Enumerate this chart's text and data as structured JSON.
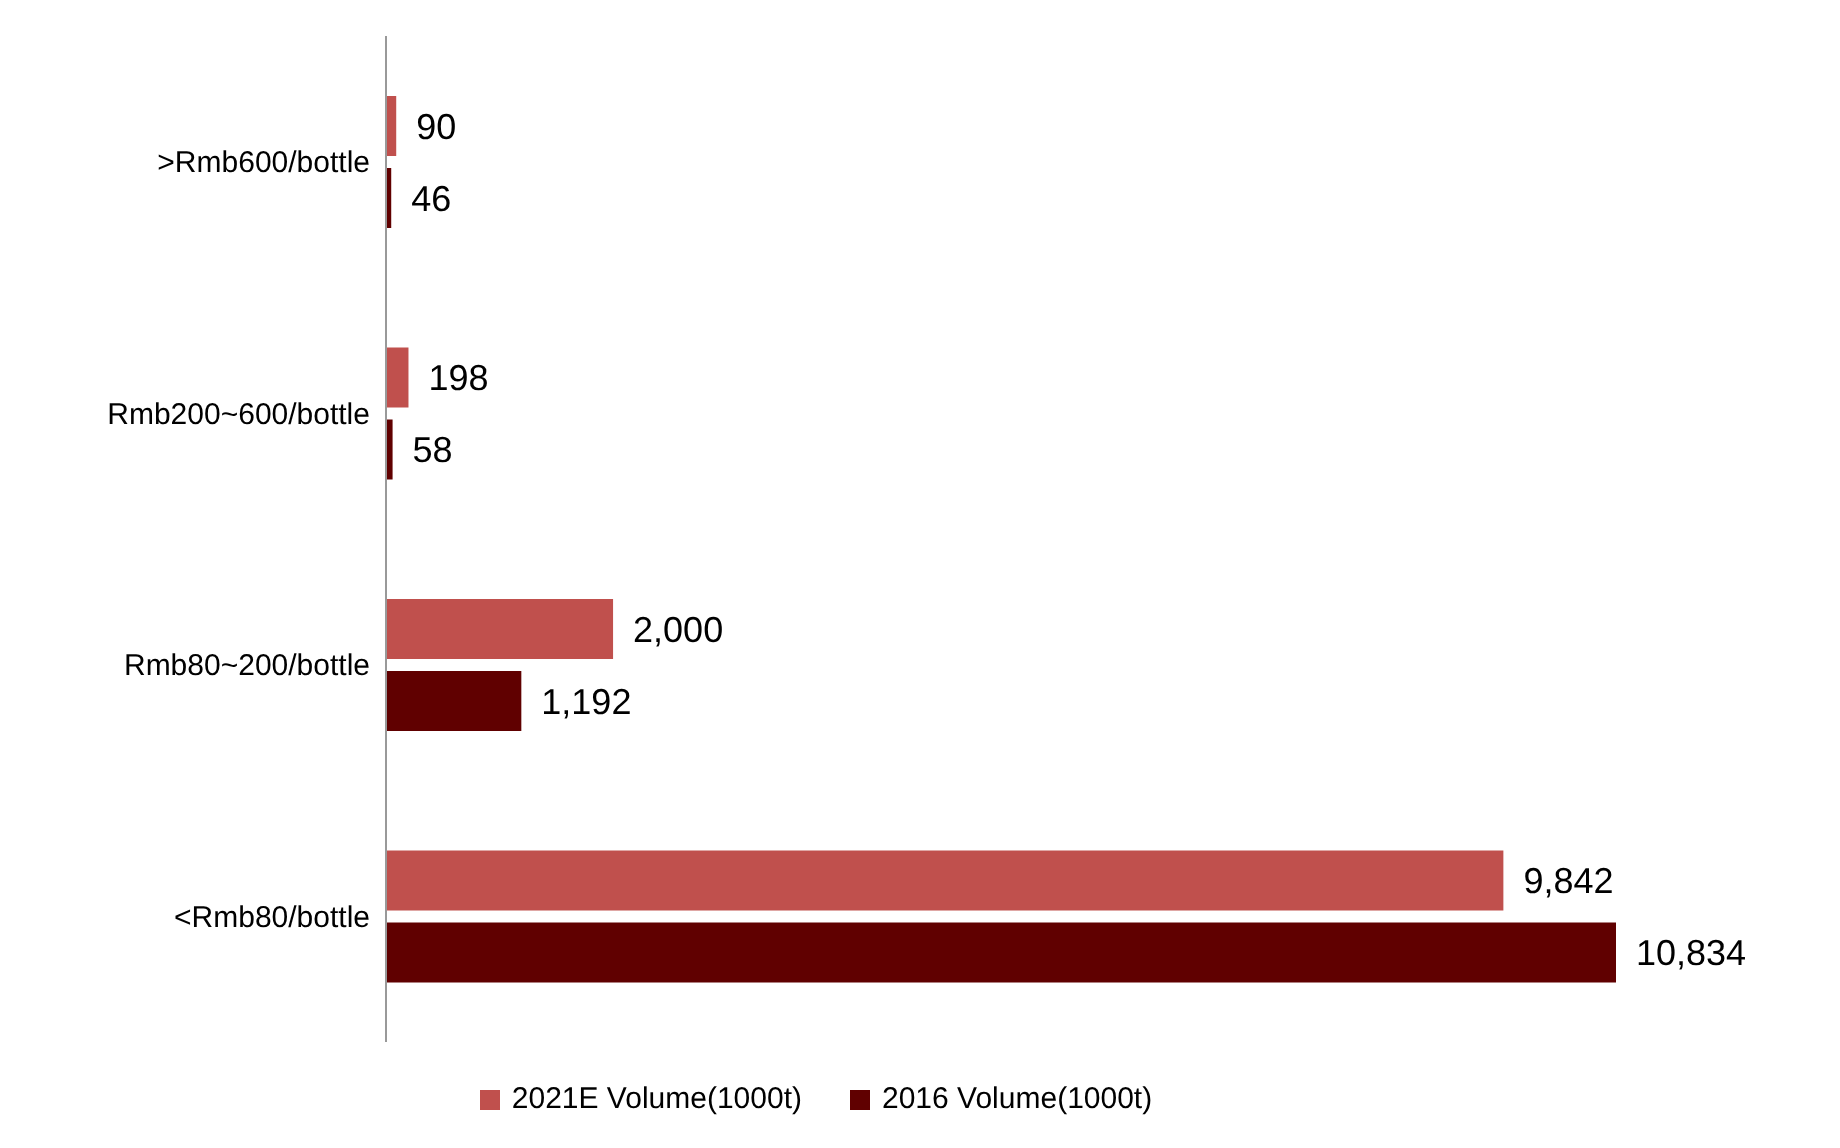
{
  "chart_data": {
    "type": "bar",
    "orientation": "horizontal",
    "categories": [
      ">Rmb600/bottle",
      "Rmb200~600/bottle",
      "Rmb80~200/bottle",
      "<Rmb80/bottle"
    ],
    "series": [
      {
        "name": "2021E Volume(1000t)",
        "color": "#c0504d",
        "values": [
          90,
          198,
          2000,
          9842
        ],
        "value_labels": [
          "90",
          "198",
          "2,000",
          "9,842"
        ]
      },
      {
        "name": "2016 Volume(1000t)",
        "color": "#600000",
        "values": [
          46,
          58,
          1192,
          10834
        ],
        "value_labels": [
          "46",
          "58",
          "1,192",
          "10,834"
        ]
      }
    ],
    "legend": "bottom",
    "grid": false
  }
}
